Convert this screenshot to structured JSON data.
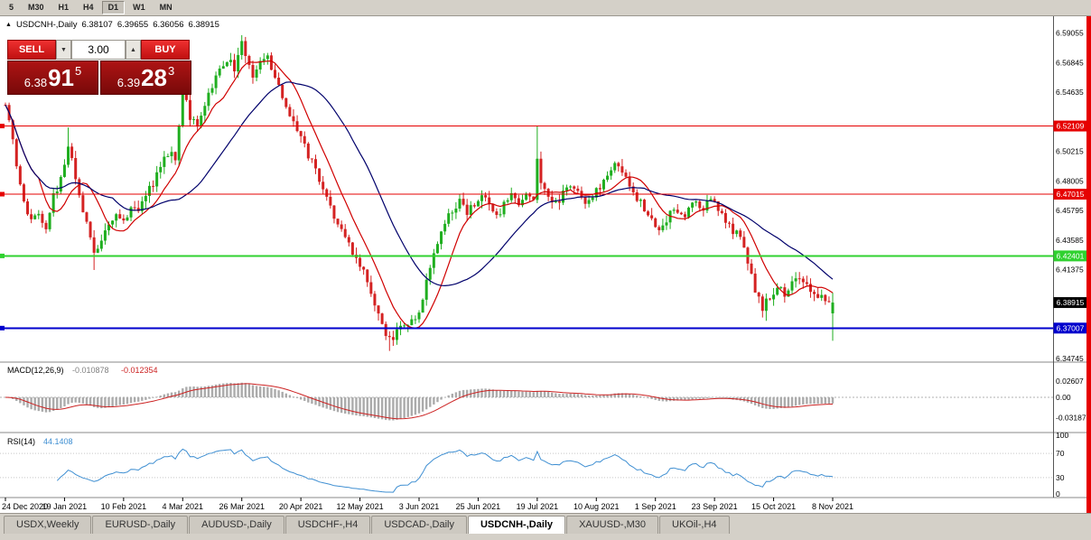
{
  "toolbar": {
    "timeframes": [
      {
        "label": "5"
      },
      {
        "label": "M30"
      },
      {
        "label": "H1"
      },
      {
        "label": "H4"
      },
      {
        "label": "D1",
        "active": true
      },
      {
        "label": "W1"
      },
      {
        "label": "MN"
      }
    ]
  },
  "chart_header": {
    "collapse_icon": "▲",
    "symbol": "USDCNH-,Daily",
    "open": "6.38107",
    "high": "6.39655",
    "low": "6.36056",
    "close": "6.38915"
  },
  "trade_panel": {
    "sell_label": "SELL",
    "buy_label": "BUY",
    "volume": "3.00",
    "spin_down": "▼",
    "spin_up": "▲",
    "sell_price": {
      "prefix": "6.38",
      "big": "91",
      "sup": "5"
    },
    "buy_price": {
      "prefix": "6.39",
      "big": "28",
      "sup": "3"
    }
  },
  "price_axis": {
    "ticks": [
      {
        "price": 6.59055,
        "label": "6.59055"
      },
      {
        "price": 6.56845,
        "label": "6.56845"
      },
      {
        "price": 6.54635,
        "label": "6.54635"
      },
      {
        "price": 6.50215,
        "label": "6.50215"
      },
      {
        "price": 6.48005,
        "label": "6.48005"
      },
      {
        "price": 6.45795,
        "label": "6.45795"
      },
      {
        "price": 6.43585,
        "label": "6.43585"
      },
      {
        "price": 6.41375,
        "label": "6.41375"
      },
      {
        "price": 6.34745,
        "label": "6.34745"
      }
    ],
    "badges": [
      {
        "price": 6.52109,
        "label": "6.52109",
        "bg": "#e60000",
        "fg": "#ffffff"
      },
      {
        "price": 6.47015,
        "label": "6.47015",
        "bg": "#e60000",
        "fg": "#ffffff"
      },
      {
        "price": 6.42401,
        "label": "6.42401",
        "bg": "#2fd12f",
        "fg": "#ffffff"
      },
      {
        "price": 6.38915,
        "label": "6.38915",
        "bg": "#000000",
        "fg": "#ffffff"
      },
      {
        "price": 6.37007,
        "label": "6.37007",
        "bg": "#0000cd",
        "fg": "#ffffff"
      }
    ]
  },
  "hlines": [
    {
      "price": 6.52109,
      "color": "#e60000",
      "width": 1
    },
    {
      "price": 6.47015,
      "color": "#e60000",
      "width": 1
    },
    {
      "price": 6.42401,
      "color": "#2fd12f",
      "width": 2
    },
    {
      "price": 6.37007,
      "color": "#0000cd",
      "width": 2
    }
  ],
  "macd": {
    "title": "MACD(12,26,9)",
    "value_main": "-0.010878",
    "value_signal": "-0.012354",
    "axis_labels": [
      {
        "v": 0.02607,
        "label": "0.02607"
      },
      {
        "v": 0,
        "label": "0.00"
      },
      {
        "v": -0.03187,
        "label": "-0.03187"
      }
    ]
  },
  "rsi": {
    "title": "RSI(14)",
    "value": "44.1408",
    "levels": [
      70,
      30
    ],
    "axis_labels": [
      {
        "v": 100,
        "label": "100"
      },
      {
        "v": 70,
        "label": "70"
      },
      {
        "v": 30,
        "label": "30"
      },
      {
        "v": 0,
        "label": "0"
      }
    ]
  },
  "tabs": [
    {
      "label": "USDX,Weekly"
    },
    {
      "label": "EURUSD-,Daily"
    },
    {
      "label": "AUDUSD-,Daily"
    },
    {
      "label": "USDCHF-,H4"
    },
    {
      "label": "USDCAD-,Daily"
    },
    {
      "label": "USDCNH-,Daily",
      "active": true
    },
    {
      "label": "XAUUSD-,M30"
    },
    {
      "label": "UKOil-,H4"
    }
  ],
  "colors": {
    "bull": "#1fae1f",
    "bear": "#d42222",
    "ma_fast": "#d00000",
    "ma_slow": "#00006b",
    "macd_hist": "#ababab",
    "macd_signal": "#cc2222",
    "rsi_line": "#3f8fd2",
    "right_strip": "#e60000"
  },
  "chart_data": {
    "type": "candlestick",
    "symbol": "USDCNH-,Daily",
    "candle_count": 225,
    "price_range_top": 6.593,
    "price_range_bottom": 6.346,
    "current_price": 6.38915,
    "last_candle": {
      "open": 6.38107,
      "high": 6.39655,
      "low": 6.36056,
      "close": 6.38915
    },
    "ma_fast": {
      "period": 10
    },
    "ma_slow": {
      "period": 30
    },
    "x_ticks": [
      {
        "i": 0,
        "label": "24 Dec 2020"
      },
      {
        "i": 16,
        "label": "19 Jan 2021"
      },
      {
        "i": 32,
        "label": "10 Feb 2021"
      },
      {
        "i": 48,
        "label": "4 Mar 2021"
      },
      {
        "i": 64,
        "label": "26 Mar 2021"
      },
      {
        "i": 80,
        "label": "20 Apr 2021"
      },
      {
        "i": 96,
        "label": "12 May 2021"
      },
      {
        "i": 112,
        "label": "3 Jun 2021"
      },
      {
        "i": 128,
        "label": "25 Jun 2021"
      },
      {
        "i": 144,
        "label": "19 Jul 2021"
      },
      {
        "i": 160,
        "label": "10 Aug 2021"
      },
      {
        "i": 176,
        "label": "1 Sep 2021"
      },
      {
        "i": 192,
        "label": "23 Sep 2021"
      },
      {
        "i": 208,
        "label": "15 Oct 2021"
      },
      {
        "i": 224,
        "label": "8 Nov 2021"
      }
    ],
    "close_anchors": [
      [
        0,
        6.534
      ],
      [
        1,
        6.528
      ],
      [
        3,
        6.492
      ],
      [
        5,
        6.462
      ],
      [
        7,
        6.45
      ],
      [
        9,
        6.455
      ],
      [
        11,
        6.442
      ],
      [
        13,
        6.468
      ],
      [
        15,
        6.482
      ],
      [
        17,
        6.505
      ],
      [
        18,
        6.495
      ],
      [
        20,
        6.468
      ],
      [
        22,
        6.448
      ],
      [
        24,
        6.424
      ],
      [
        26,
        6.436
      ],
      [
        28,
        6.448
      ],
      [
        30,
        6.456
      ],
      [
        32,
        6.45
      ],
      [
        34,
        6.462
      ],
      [
        36,
        6.456
      ],
      [
        38,
        6.468
      ],
      [
        40,
        6.479
      ],
      [
        42,
        6.49
      ],
      [
        44,
        6.5
      ],
      [
        46,
        6.498
      ],
      [
        48,
        6.548
      ],
      [
        50,
        6.528
      ],
      [
        52,
        6.52
      ],
      [
        54,
        6.536
      ],
      [
        56,
        6.55
      ],
      [
        58,
        6.562
      ],
      [
        60,
        6.57
      ],
      [
        62,
        6.565
      ],
      [
        64,
        6.582
      ],
      [
        65,
        6.575
      ],
      [
        67,
        6.556
      ],
      [
        69,
        6.568
      ],
      [
        71,
        6.572
      ],
      [
        73,
        6.556
      ],
      [
        75,
        6.542
      ],
      [
        77,
        6.53
      ],
      [
        79,
        6.52
      ],
      [
        81,
        6.505
      ],
      [
        83,
        6.494
      ],
      [
        85,
        6.48
      ],
      [
        87,
        6.468
      ],
      [
        89,
        6.455
      ],
      [
        91,
        6.445
      ],
      [
        93,
        6.432
      ],
      [
        95,
        6.424
      ],
      [
        97,
        6.412
      ],
      [
        99,
        6.398
      ],
      [
        101,
        6.382
      ],
      [
        103,
        6.366
      ],
      [
        105,
        6.362
      ],
      [
        107,
        6.373
      ],
      [
        109,
        6.37
      ],
      [
        111,
        6.377
      ],
      [
        113,
        6.392
      ],
      [
        115,
        6.415
      ],
      [
        117,
        6.436
      ],
      [
        119,
        6.448
      ],
      [
        121,
        6.458
      ],
      [
        123,
        6.464
      ],
      [
        125,
        6.455
      ],
      [
        127,
        6.464
      ],
      [
        129,
        6.47
      ],
      [
        131,
        6.46
      ],
      [
        133,
        6.452
      ],
      [
        135,
        6.462
      ],
      [
        137,
        6.468
      ],
      [
        139,
        6.462
      ],
      [
        141,
        6.472
      ],
      [
        143,
        6.468
      ],
      [
        144,
        6.498
      ],
      [
        145,
        6.478
      ],
      [
        147,
        6.47
      ],
      [
        149,
        6.462
      ],
      [
        151,
        6.47
      ],
      [
        153,
        6.477
      ],
      [
        155,
        6.47
      ],
      [
        157,
        6.463
      ],
      [
        159,
        6.47
      ],
      [
        161,
        6.477
      ],
      [
        163,
        6.484
      ],
      [
        165,
        6.492
      ],
      [
        167,
        6.486
      ],
      [
        169,
        6.478
      ],
      [
        171,
        6.468
      ],
      [
        173,
        6.458
      ],
      [
        175,
        6.45
      ],
      [
        177,
        6.444
      ],
      [
        179,
        6.452
      ],
      [
        181,
        6.458
      ],
      [
        183,
        6.452
      ],
      [
        185,
        6.459
      ],
      [
        187,
        6.465
      ],
      [
        189,
        6.459
      ],
      [
        191,
        6.465
      ],
      [
        193,
        6.459
      ],
      [
        195,
        6.45
      ],
      [
        197,
        6.443
      ],
      [
        199,
        6.437
      ],
      [
        201,
        6.42
      ],
      [
        203,
        6.398
      ],
      [
        205,
        6.386
      ],
      [
        207,
        6.392
      ],
      [
        209,
        6.4
      ],
      [
        211,
        6.395
      ],
      [
        213,
        6.402
      ],
      [
        215,
        6.408
      ],
      [
        217,
        6.4
      ],
      [
        219,
        6.393
      ],
      [
        221,
        6.398
      ],
      [
        223,
        6.387
      ],
      [
        224,
        6.38915
      ]
    ],
    "spikes": [
      {
        "i": 17,
        "high": 6.52
      },
      {
        "i": 24,
        "low": 6.4135
      },
      {
        "i": 48,
        "high": 6.566
      },
      {
        "i": 64,
        "high": 6.589
      },
      {
        "i": 70,
        "high": 6.5755
      },
      {
        "i": 104,
        "low": 6.353
      },
      {
        "i": 144,
        "high": 6.521
      },
      {
        "i": 206,
        "low": 6.3755
      }
    ]
  }
}
